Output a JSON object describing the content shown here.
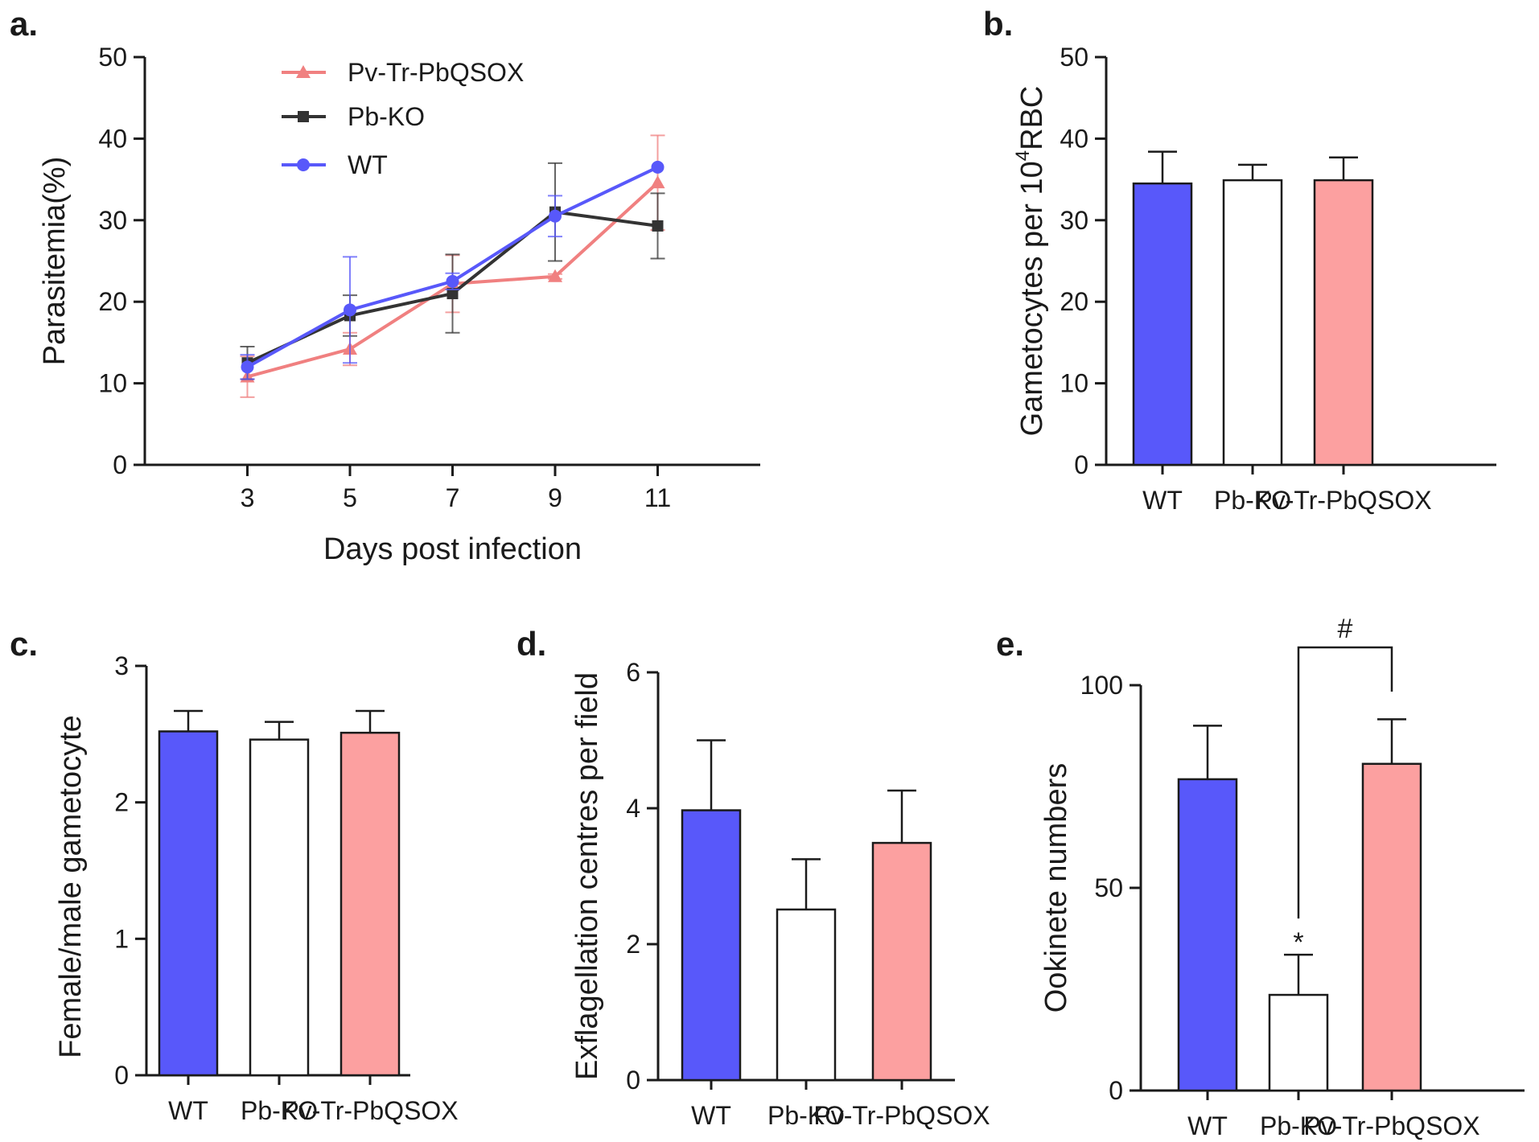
{
  "colors": {
    "wt": "#5858fa",
    "ko": "#333333",
    "pv": "#f08080",
    "pv_bar": "#fca0a0",
    "ko_bar": "#ffffff",
    "axis": "#1a1a1a"
  },
  "chart_data": [
    {
      "panel": "a.",
      "type": "line",
      "xlabel": "Days post infection",
      "ylabel": "Parasitemia(%)",
      "x": [
        3,
        5,
        7,
        9,
        11
      ],
      "xlim": [
        1,
        13
      ],
      "ylim": [
        0,
        50
      ],
      "yticks": [
        0,
        10,
        20,
        30,
        40,
        50
      ],
      "legend_position": "top-center",
      "series": [
        {
          "name": "Pv-Tr-PbQSOX",
          "marker": "triangle",
          "values": [
            10.8,
            14.2,
            22.2,
            23.1,
            34.6
          ],
          "errors": [
            2.5,
            2.0,
            3.5,
            0.3,
            5.8
          ]
        },
        {
          "name": "Pb-KO",
          "marker": "square",
          "values": [
            12.5,
            18.3,
            21.0,
            31.0,
            29.3
          ],
          "errors": [
            2.0,
            2.5,
            4.8,
            6.0,
            4.0
          ]
        },
        {
          "name": "WT",
          "marker": "circle",
          "values": [
            12.0,
            19.0,
            22.5,
            30.5,
            36.5
          ],
          "errors": [
            1.5,
            6.5,
            1.0,
            2.5,
            0.0
          ]
        }
      ]
    },
    {
      "panel": "b.",
      "type": "bar",
      "ylabel": "Gametocytes per 10",
      "ylabel_sup": "4",
      "ylabel_tail": "RBC",
      "categories": [
        "WT",
        "Pb-KO",
        "Pv-Tr-PbQSOX"
      ],
      "values": [
        34.5,
        34.9,
        34.9
      ],
      "errors": [
        3.9,
        1.9,
        2.8
      ],
      "ylim": [
        0,
        50
      ],
      "yticks": [
        0,
        10,
        20,
        30,
        40,
        50
      ]
    },
    {
      "panel": "c.",
      "type": "bar",
      "ylabel": "Female/male gametocyte",
      "categories": [
        "WT",
        "Pb-KO",
        "Pv-Tr-PbQSOX"
      ],
      "values": [
        2.52,
        2.46,
        2.51
      ],
      "errors": [
        0.15,
        0.13,
        0.16
      ],
      "ylim": [
        0,
        3
      ],
      "yticks": [
        0,
        1,
        2,
        3
      ]
    },
    {
      "panel": "d.",
      "type": "bar",
      "ylabel": "Exflagellation centres per field",
      "categories": [
        "WT",
        "Pb-KO",
        "Pv-Tr-PbQSOX"
      ],
      "values": [
        3.97,
        2.51,
        3.49
      ],
      "errors": [
        1.03,
        0.74,
        0.77
      ],
      "ylim": [
        0,
        6
      ],
      "yticks": [
        0,
        2,
        4,
        6
      ]
    },
    {
      "panel": "e.",
      "type": "bar",
      "ylabel": "Ookinete numbers",
      "categories": [
        "WT",
        "Pb-KO",
        "Pv-Tr-PbQSOX"
      ],
      "values": [
        76.8,
        23.6,
        80.6
      ],
      "errors": [
        13.2,
        9.9,
        11.0
      ],
      "ylim": [
        0,
        100
      ],
      "yticks": [
        0,
        50,
        100
      ],
      "annotations": [
        {
          "text": "*",
          "category": "Pb-KO"
        },
        {
          "text": "#",
          "between": [
            "Pb-KO",
            "Pv-Tr-PbQSOX"
          ]
        }
      ]
    }
  ]
}
